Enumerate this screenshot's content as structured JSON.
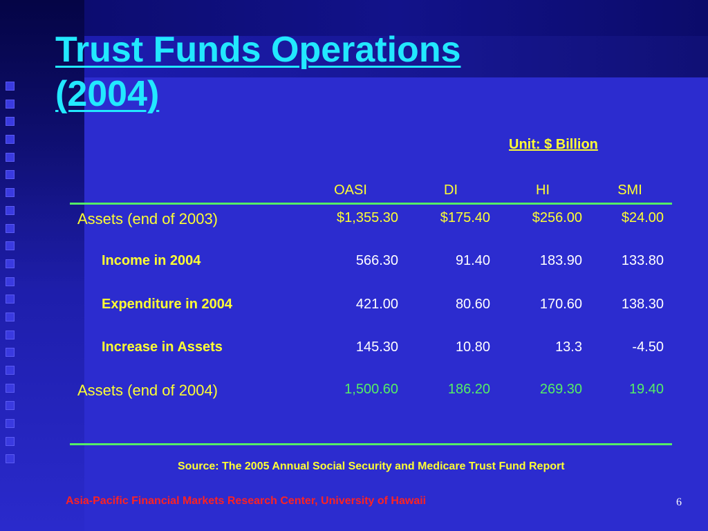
{
  "slide": {
    "title_line1": "Trust Funds Operations",
    "title_line2": "(2004)",
    "unit": "Unit: $ Billion",
    "source": "Source: The 2005 Annual Social Security and Medicare Trust Fund Report",
    "footer": "Asia-Pacific Financial Markets Research Center, University of Hawaii",
    "page_number": "6"
  },
  "table": {
    "columns": [
      "OASI",
      "DI",
      "HI",
      "SMI"
    ],
    "rows": [
      {
        "label": "Assets (end of 2003)",
        "values": [
          "$1,355.30",
          "$175.40",
          "$256.00",
          "$24.00"
        ]
      },
      {
        "label": "Income in 2004",
        "values": [
          "566.30",
          "91.40",
          "183.90",
          "133.80"
        ]
      },
      {
        "label": "Expenditure in 2004",
        "values": [
          "421.00",
          "80.60",
          "170.60",
          "138.30"
        ]
      },
      {
        "label": "Increase in Assets",
        "values": [
          "145.30",
          "10.80",
          "13.3",
          "-4.50"
        ]
      },
      {
        "label": "Assets (end of 2004)",
        "values": [
          "1,500.60",
          "186.20",
          "269.30",
          "19.40"
        ]
      }
    ]
  },
  "colors": {
    "background": "#2c2ccf",
    "title": "#22e8ff",
    "text_yellow": "#ffff33",
    "rule_green": "#55ee66",
    "footer_red": "#ff2222"
  }
}
